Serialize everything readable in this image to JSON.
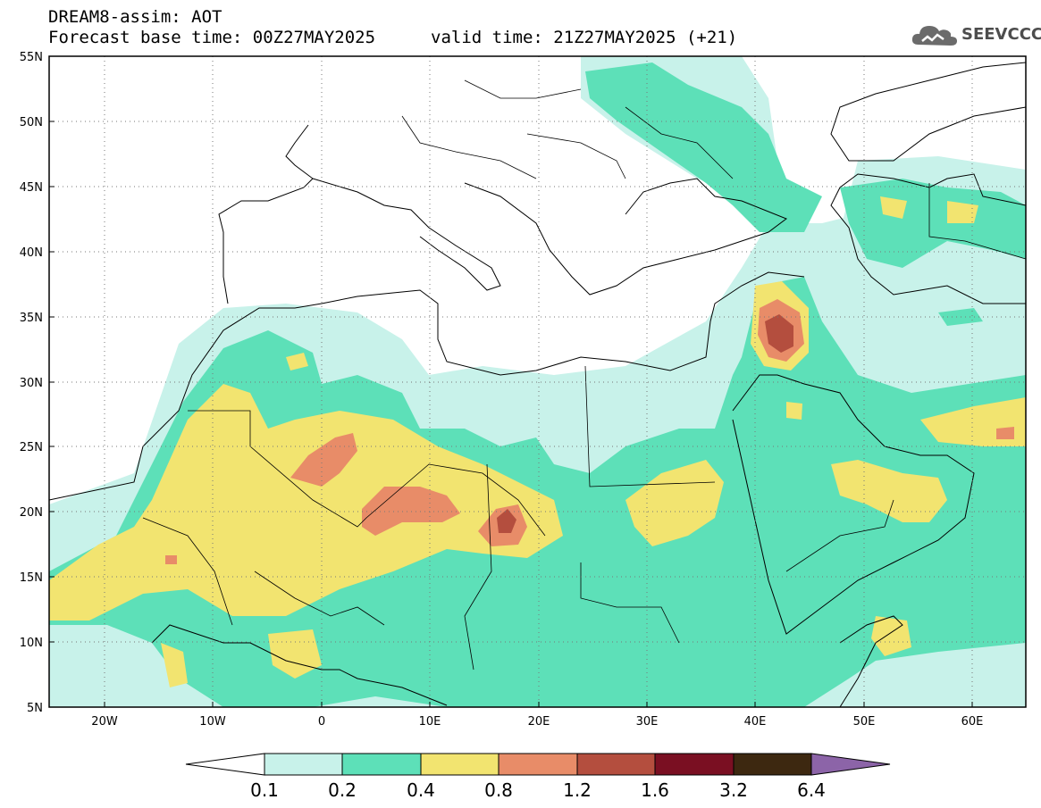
{
  "header": {
    "model_title": "DREAM8-assim: AOT",
    "base_time": "Forecast base time: 00Z27MAY2025",
    "valid_time": "valid time: 21Z27MAY2025 (+21)"
  },
  "logo": {
    "text": "SEEVCCC",
    "icon": "cloud-icon"
  },
  "map": {
    "lon_range": [
      -25,
      65
    ],
    "lat_range": [
      5,
      55
    ],
    "lat_labels": [
      "55N",
      "50N",
      "45N",
      "40N",
      "35N",
      "30N",
      "25N",
      "20N",
      "15N",
      "10N",
      "5N"
    ],
    "lon_labels": [
      "20W",
      "10W",
      "0",
      "10E",
      "20E",
      "30E",
      "40E",
      "50E",
      "60E"
    ]
  },
  "colorbar": {
    "thresholds": [
      "0.1",
      "0.2",
      "0.4",
      "0.8",
      "1.2",
      "1.6",
      "3.2",
      "6.4"
    ],
    "colors": [
      "#ffffff",
      "#c8f2ea",
      "#5de0b8",
      "#f2e470",
      "#e88c68",
      "#b44e3e",
      "#7a0f22",
      "#3d2810",
      "#8c64a8"
    ]
  }
}
